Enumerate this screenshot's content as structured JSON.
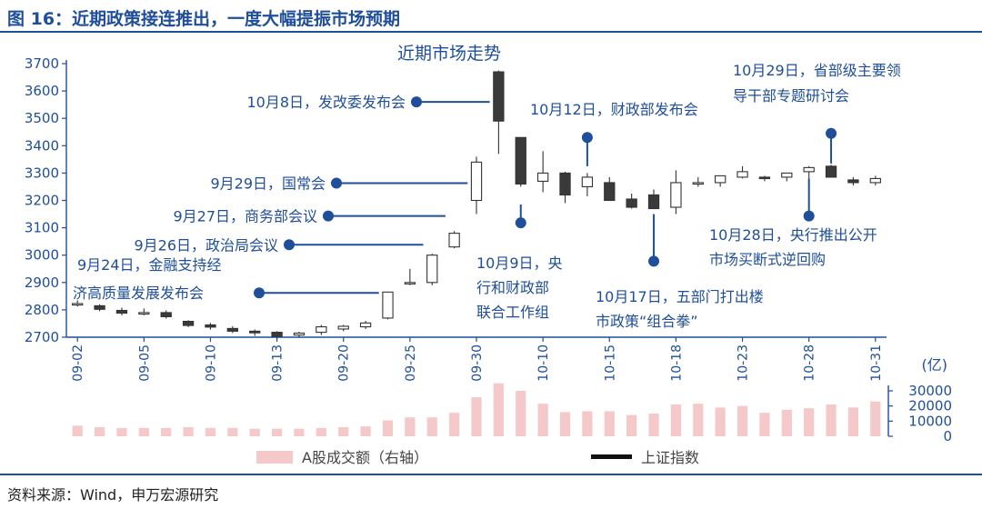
{
  "figure_title": "图 16：近期政策接连推出，一度大幅提振市场预期",
  "source": "资料来源：Wind，申万宏源研究",
  "chart_data": {
    "type": "candlestick",
    "title": "近期市场走势",
    "dates": [
      "09-02",
      "09-03",
      "09-04",
      "09-05",
      "09-06",
      "09-09",
      "09-10",
      "09-11",
      "09-12",
      "09-13",
      "09-18",
      "09-19",
      "09-20",
      "09-23",
      "09-24",
      "09-25",
      "09-26",
      "09-27",
      "09-30",
      "10-08",
      "10-09",
      "10-10",
      "10-11",
      "10-14",
      "10-15",
      "10-16",
      "10-17",
      "10-18",
      "10-21",
      "10-22",
      "10-23",
      "10-24",
      "10-25",
      "10-28",
      "10-29",
      "10-30",
      "10-31"
    ],
    "x_tick_labels": [
      "09-02",
      "09-05",
      "09-10",
      "09-13",
      "09-20",
      "09-25",
      "09-30",
      "10-10",
      "10-15",
      "10-18",
      "10-23",
      "10-28",
      "10-31"
    ],
    "ohlc": [
      [
        2820,
        2835,
        2812,
        2823
      ],
      [
        2815,
        2820,
        2795,
        2802
      ],
      [
        2798,
        2808,
        2780,
        2788
      ],
      [
        2788,
        2805,
        2780,
        2790
      ],
      [
        2790,
        2798,
        2768,
        2775
      ],
      [
        2758,
        2762,
        2737,
        2743
      ],
      [
        2745,
        2752,
        2728,
        2737
      ],
      [
        2732,
        2740,
        2715,
        2722
      ],
      [
        2722,
        2728,
        2705,
        2716
      ],
      [
        2718,
        2722,
        2695,
        2703
      ],
      [
        2708,
        2720,
        2698,
        2715
      ],
      [
        2718,
        2745,
        2708,
        2738
      ],
      [
        2730,
        2745,
        2722,
        2740
      ],
      [
        2738,
        2760,
        2730,
        2752
      ],
      [
        2770,
        2865,
        2765,
        2865
      ],
      [
        2900,
        2950,
        2890,
        2900
      ],
      [
        2900,
        3005,
        2890,
        3000
      ],
      [
        3030,
        3088,
        3025,
        3080
      ],
      [
        3200,
        3360,
        3150,
        3340
      ],
      [
        3670,
        3675,
        3370,
        3490
      ],
      [
        3430,
        3430,
        3250,
        3260
      ],
      [
        3270,
        3380,
        3230,
        3300
      ],
      [
        3300,
        3305,
        3190,
        3220
      ],
      [
        3250,
        3300,
        3215,
        3285
      ],
      [
        3265,
        3285,
        3200,
        3200
      ],
      [
        3205,
        3225,
        3170,
        3175
      ],
      [
        3220,
        3240,
        3170,
        3170
      ],
      [
        3175,
        3310,
        3150,
        3265
      ],
      [
        3260,
        3285,
        3250,
        3265
      ],
      [
        3265,
        3290,
        3250,
        3290
      ],
      [
        3285,
        3325,
        3280,
        3305
      ],
      [
        3285,
        3290,
        3270,
        3280
      ],
      [
        3285,
        3300,
        3270,
        3300
      ],
      [
        3305,
        3325,
        3280,
        3320
      ],
      [
        3325,
        3330,
        3285,
        3285
      ],
      [
        3275,
        3285,
        3255,
        3265
      ],
      [
        3265,
        3290,
        3255,
        3280
      ]
    ],
    "volume": [
      7000,
      6000,
      5500,
      5500,
      5500,
      6000,
      5500,
      5500,
      5000,
      5000,
      5000,
      5500,
      6000,
      6500,
      10500,
      12500,
      12500,
      15500,
      25800,
      35000,
      30000,
      21500,
      16000,
      16500,
      16500,
      14000,
      15000,
      21000,
      21500,
      19000,
      20000,
      15500,
      17500,
      18500,
      21000,
      19000,
      23000
    ],
    "y_axis_left": {
      "min": 2700,
      "max": 3700,
      "step": 100
    },
    "y_axis_right": {
      "min": 0,
      "max": 30000,
      "ticks": [
        0,
        10000,
        20000,
        30000
      ],
      "unit": "(亿)"
    },
    "legend": {
      "volume": "A股成交额（右轴）",
      "index": "上证指数"
    },
    "colors": {
      "up": "#ffffff",
      "down": "#3a3a3a",
      "volume": "#f5c9c9",
      "annotation": "#1f4e9a",
      "axis": "#1f4e9a"
    },
    "annotations": [
      {
        "lines": [
          "10月8日，发改委发布会"
        ],
        "target_date": "10-08",
        "target_y": 3560,
        "marker_y": 3560,
        "orientation": "left"
      },
      {
        "lines": [
          "9月29日，国常会"
        ],
        "target_date": "09-30",
        "target_y": 3263,
        "marker_y": 3263,
        "orientation": "left"
      },
      {
        "lines": [
          "9月27日，商务部会议"
        ],
        "target_date": "09-27",
        "target_y": 3143,
        "marker_y": 3143,
        "orientation": "left"
      },
      {
        "lines": [
          "9月26日，政治局会议"
        ],
        "target_date": "09-26",
        "target_y": 3038,
        "marker_y": 3038,
        "orientation": "left"
      },
      {
        "lines": [
          "9月24日，金融支持经",
          "济高质量发展发布会"
        ],
        "target_date": "09-24",
        "target_y": 2862,
        "marker_y": 2862,
        "orientation": "left"
      },
      {
        "lines": [
          "10月9日，央",
          "行和财政部",
          "联合工作组"
        ],
        "target_date": "10-09",
        "target_y": 3185,
        "marker_y": 3118,
        "orientation": "below"
      },
      {
        "lines": [
          "10月12日，财政部发布会"
        ],
        "target_date": "10-14",
        "target_y": 3325,
        "marker_y": 3430,
        "orientation": "above"
      },
      {
        "lines": [
          "10月17日，五部门打出楼",
          "市政策“组合拳”"
        ],
        "target_date": "10-17",
        "target_y": 3150,
        "marker_y": 2978,
        "orientation": "below"
      },
      {
        "lines": [
          "10月29日，省部级主要领",
          "导干部专题研讨会"
        ],
        "target_date": "10-29",
        "target_y": 3335,
        "marker_y": 3445,
        "orientation": "above"
      },
      {
        "lines": [
          "10月28日，央行推出公开",
          "市场买断式逆回购"
        ],
        "target_date": "10-28",
        "target_y": 3280,
        "marker_y": 3143,
        "orientation": "below"
      }
    ]
  }
}
